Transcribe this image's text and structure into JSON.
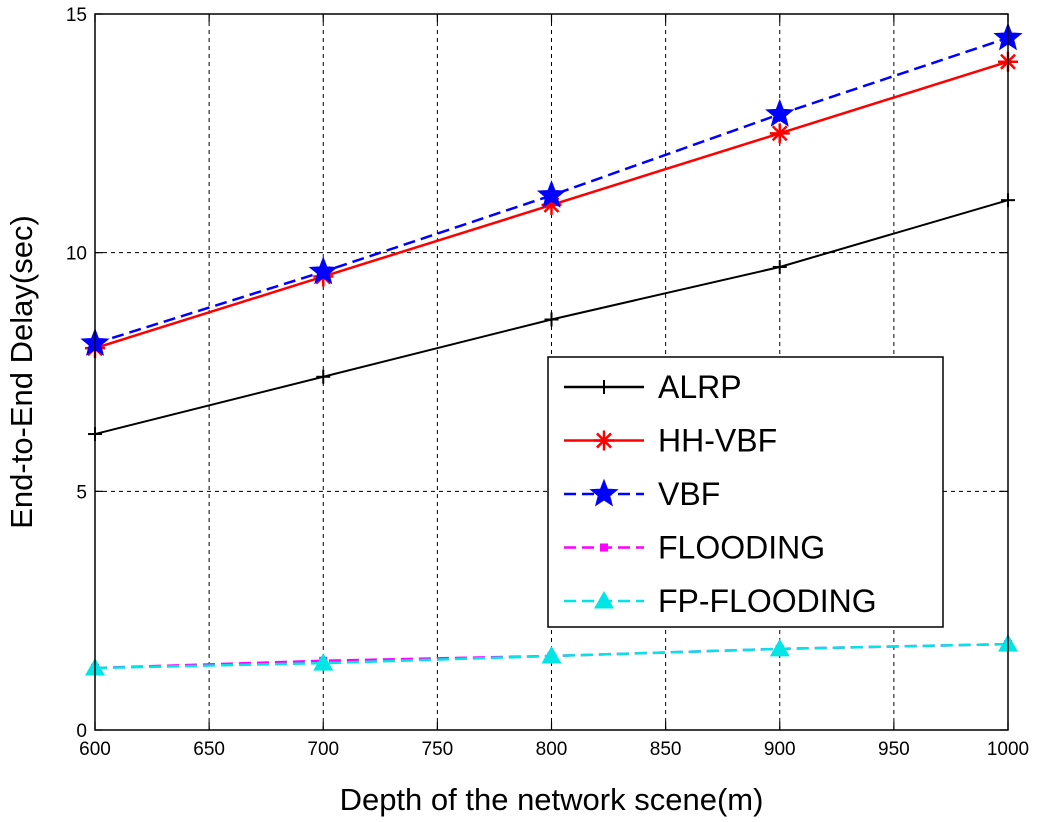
{
  "chart_data": {
    "type": "line",
    "xlabel": "Depth of the network scene(m)",
    "ylabel": "End-to-End Delay(sec)",
    "xlim": [
      600,
      1000
    ],
    "ylim": [
      0,
      15
    ],
    "xticks": [
      "600",
      "650",
      "700",
      "750",
      "800",
      "850",
      "900",
      "950",
      "1000"
    ],
    "yticks": [
      "0",
      "5",
      "10",
      "15"
    ],
    "grid": true,
    "legend_position": "lower-right",
    "x": [
      600,
      700,
      800,
      900,
      1000
    ],
    "series": [
      {
        "name": "ALRP",
        "values": [
          6.2,
          7.4,
          8.6,
          9.7,
          11.1
        ],
        "color": "#000000",
        "dash": "solid",
        "marker": "plus"
      },
      {
        "name": "HH-VBF",
        "values": [
          8.0,
          9.5,
          11.0,
          12.5,
          14.0
        ],
        "color": "#ff0000",
        "dash": "solid",
        "marker": "asterisk"
      },
      {
        "name": "VBF",
        "values": [
          8.1,
          9.6,
          11.2,
          12.9,
          14.5
        ],
        "color": "#0000ff",
        "dash": "dashed",
        "marker": "star"
      },
      {
        "name": "FLOODING",
        "values": [
          1.3,
          1.45,
          1.55,
          1.7,
          1.8
        ],
        "color": "#ff00ff",
        "dash": "dashed",
        "marker": "square"
      },
      {
        "name": "FP-FLOODING",
        "values": [
          1.3,
          1.4,
          1.55,
          1.7,
          1.8
        ],
        "color": "#00e5e5",
        "dash": "dashed",
        "marker": "triangle"
      }
    ]
  }
}
